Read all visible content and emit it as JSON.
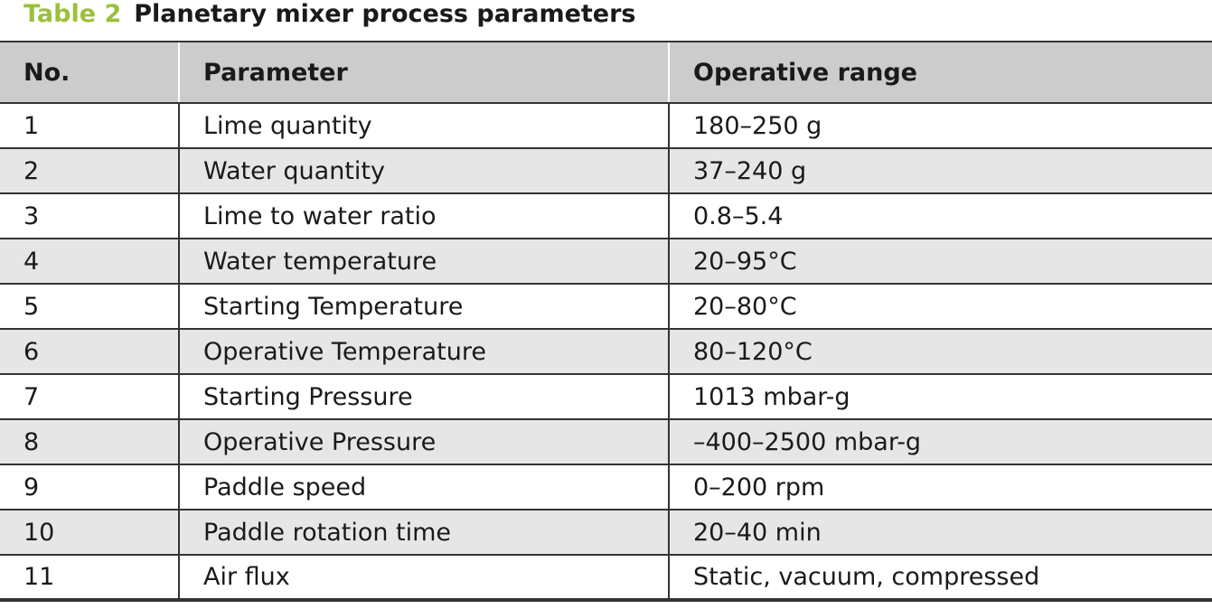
{
  "caption": {
    "label": "Table 2",
    "title": "Planetary mixer process parameters"
  },
  "colors": {
    "label_green": "#9cc03b",
    "header_bg": "#cccccc",
    "stripe_bg": "#e6e6e6"
  },
  "table": {
    "headers": [
      "No.",
      "Parameter",
      "Operative range"
    ],
    "rows": [
      [
        "1",
        "Lime quantity",
        "180–250 g"
      ],
      [
        "2",
        "Water quantity",
        "37–240 g"
      ],
      [
        "3",
        "Lime to water ratio",
        "0.8–5.4"
      ],
      [
        "4",
        "Water temperature",
        "20–95°C"
      ],
      [
        "5",
        "Starting Temperature",
        "20–80°C"
      ],
      [
        "6",
        "Operative Temperature",
        "80–120°C"
      ],
      [
        "7",
        "Starting Pressure",
        "1013 mbar-g"
      ],
      [
        "8",
        "Operative Pressure",
        "–400–2500 mbar-g"
      ],
      [
        "9",
        "Paddle speed",
        "0–200 rpm"
      ],
      [
        "10",
        "Paddle rotation time",
        "20–40 min"
      ],
      [
        "11",
        "Air flux",
        "Static, vacuum, compressed"
      ]
    ]
  }
}
